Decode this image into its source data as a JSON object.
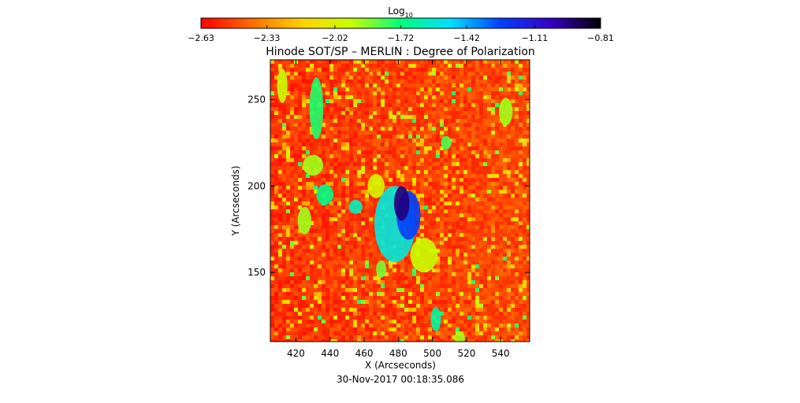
{
  "chart_data": {
    "type": "heatmap",
    "title": "Hinode SOT/SP – MERLIN : Degree of Polarization",
    "xlabel": "X (Arcseconds)",
    "ylabel": "Y (Arcseconds)",
    "timestamp": "30-Nov-2017 00:18:35.086",
    "xlim": [
      405,
      557
    ],
    "ylim": [
      110,
      273
    ],
    "x_ticks": [
      420,
      440,
      460,
      480,
      500,
      520,
      540
    ],
    "y_ticks": [
      150,
      200,
      250
    ],
    "colorbar": {
      "label_base": "Log",
      "label_sub": "10",
      "range": [
        -2.63,
        -0.81
      ],
      "tick_values": [
        -2.63,
        -2.33,
        -2.02,
        -1.72,
        -1.42,
        -1.11,
        -0.81
      ],
      "tick_labels": [
        "−2.63",
        "−2.33",
        "−2.02",
        "−1.72",
        "−1.42",
        "−1.11",
        "−0.81"
      ],
      "colormap_stops": [
        "#ff0000",
        "#ff6a00",
        "#ffd000",
        "#c8ff00",
        "#00ff7a",
        "#00e0ff",
        "#0040ff",
        "#3a00c8",
        "#000000"
      ]
    },
    "features": [
      {
        "x": 482,
        "y": 190,
        "value": -0.95,
        "rx": 4.5,
        "ry": 10
      },
      {
        "x": 486,
        "y": 183,
        "value": -1.25,
        "rx": 7,
        "ry": 14
      },
      {
        "x": 478,
        "y": 178,
        "value": -1.55,
        "rx": 12,
        "ry": 22
      },
      {
        "x": 432,
        "y": 245,
        "value": -1.75,
        "rx": 4,
        "ry": 18
      },
      {
        "x": 430,
        "y": 212,
        "value": -1.9,
        "rx": 6,
        "ry": 6
      },
      {
        "x": 437,
        "y": 195,
        "value": -1.7,
        "rx": 5,
        "ry": 6
      },
      {
        "x": 455,
        "y": 188,
        "value": -1.6,
        "rx": 4,
        "ry": 4
      },
      {
        "x": 502,
        "y": 123,
        "value": -1.65,
        "rx": 3,
        "ry": 7
      },
      {
        "x": 508,
        "y": 225,
        "value": -1.8,
        "rx": 3,
        "ry": 4
      },
      {
        "x": 543,
        "y": 243,
        "value": -1.9,
        "rx": 4,
        "ry": 8
      },
      {
        "x": 412,
        "y": 258,
        "value": -1.95,
        "rx": 3,
        "ry": 10
      },
      {
        "x": 425,
        "y": 180,
        "value": -1.9,
        "rx": 4,
        "ry": 8
      },
      {
        "x": 470,
        "y": 152,
        "value": -1.85,
        "rx": 3,
        "ry": 5
      },
      {
        "x": 495,
        "y": 160,
        "value": -1.95,
        "rx": 8,
        "ry": 10
      },
      {
        "x": 467,
        "y": 200,
        "value": -2.0,
        "rx": 5,
        "ry": 7
      },
      {
        "x": 516,
        "y": 112,
        "value": -1.9,
        "rx": 3,
        "ry": 4
      }
    ]
  }
}
